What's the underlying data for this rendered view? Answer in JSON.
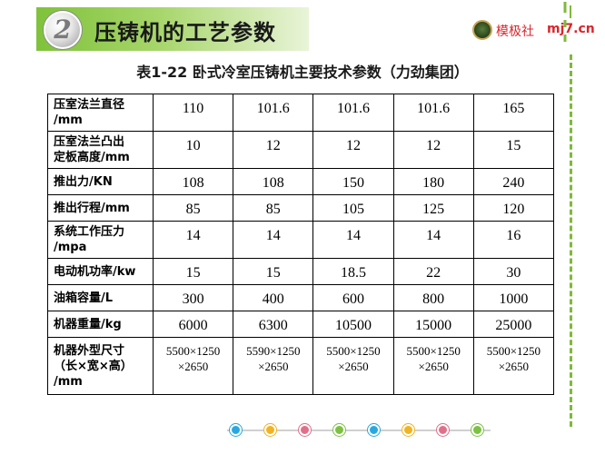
{
  "header": {
    "badge_number": "2",
    "title": "压铸机的工艺参数"
  },
  "brand": {
    "name": "模极社",
    "url": "mj7.cn"
  },
  "table_title": "表1-22  卧式冷室压铸机主要技术参数（力劲集团）",
  "table": {
    "rows": [
      {
        "label": [
          "压室法兰直径",
          "/mm"
        ],
        "values": [
          "110",
          "101.6",
          "101.6",
          "101.6",
          "165"
        ]
      },
      {
        "label": [
          "压室法兰凸出",
          "定板高度/mm"
        ],
        "values": [
          "10",
          "12",
          "12",
          "12",
          "15"
        ]
      },
      {
        "label": [
          "推出力/KN"
        ],
        "values": [
          "108",
          "108",
          "150",
          "180",
          "240"
        ]
      },
      {
        "label": [
          "推出行程/mm"
        ],
        "values": [
          "85",
          "85",
          "105",
          "125",
          "120"
        ]
      },
      {
        "label": [
          "系统工作压力",
          "/mpa"
        ],
        "values": [
          "14",
          "14",
          "14",
          "14",
          "16"
        ]
      },
      {
        "label": [
          "电动机功率/kw"
        ],
        "values": [
          "15",
          "15",
          "18.5",
          "22",
          "30"
        ]
      },
      {
        "label": [
          "油箱容量/L"
        ],
        "values": [
          "300",
          "400",
          "600",
          "800",
          "1000"
        ]
      },
      {
        "label": [
          "机器重量/kg"
        ],
        "values": [
          "6000",
          "6300",
          "10500",
          "15000",
          "25000"
        ]
      },
      {
        "label": [
          "机器外型尺寸",
          "（长×宽×高）",
          "/mm"
        ],
        "values": [
          [
            "5500×1250",
            "×2650"
          ],
          [
            "5590×1250",
            "×2650"
          ],
          [
            "5500×1250",
            "×2650"
          ],
          [
            "5500×1250",
            "×2650"
          ],
          [
            "5500×1250",
            "×2650"
          ]
        ]
      }
    ]
  },
  "colors": {
    "accent_green": "#7fc23a",
    "brand_red": "#d8262b",
    "dot_colors": [
      "#29a8e0",
      "#f0b323",
      "#e0708a",
      "#7cc142",
      "#29a8e0",
      "#f0b323",
      "#e0708a",
      "#7cc142"
    ]
  }
}
